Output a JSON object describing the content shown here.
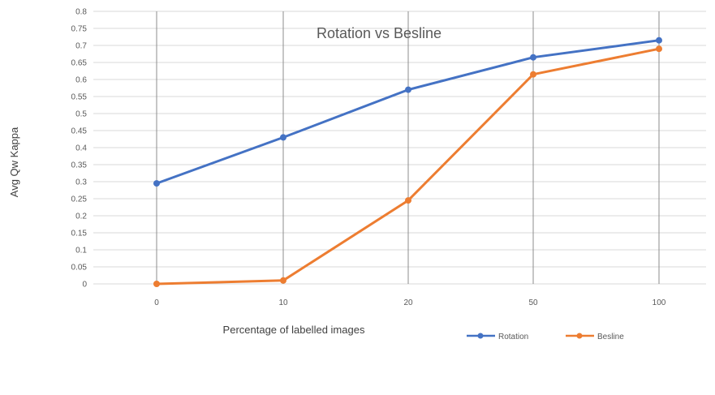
{
  "chart_data": {
    "type": "line",
    "title": "Rotation vs Besline",
    "xlabel": "Percentage of labelled images",
    "ylabel": "Avg Qw Kappa",
    "categories": [
      "0",
      "10",
      "20",
      "50",
      "100"
    ],
    "ylim": [
      0,
      0.8
    ],
    "yticks": [
      "0",
      "0.05",
      "0.1",
      "0.15",
      "0.2",
      "0.25",
      "0.3",
      "0.35",
      "0.4",
      "0.45",
      "0.5",
      "0.55",
      "0.6",
      "0.65",
      "0.7",
      "0.75",
      "0.8"
    ],
    "grid": true,
    "legend_position": "bottom-right",
    "series": [
      {
        "name": "Rotation",
        "color": "#4472C4",
        "values": [
          0.295,
          0.43,
          0.57,
          0.665,
          0.715
        ]
      },
      {
        "name": "Besline",
        "color": "#ED7D31",
        "values": [
          0.0,
          0.01,
          0.245,
          0.615,
          0.69
        ]
      }
    ]
  }
}
